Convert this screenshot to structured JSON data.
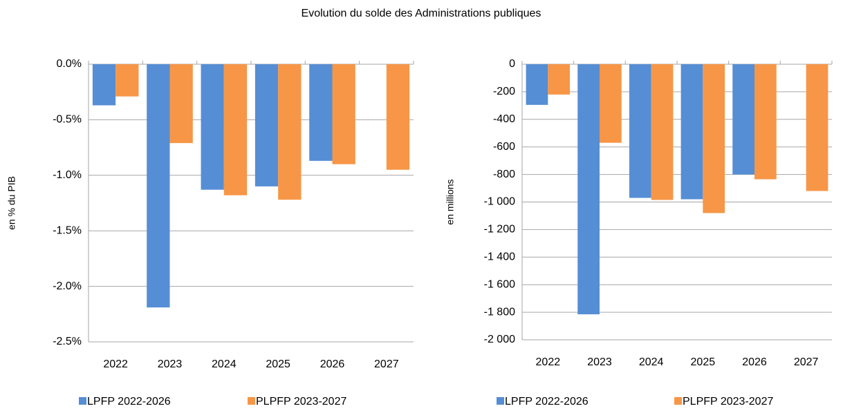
{
  "title": "Evolution du solde des Administrations publiques",
  "chart_data": [
    {
      "type": "bar",
      "y_label": "en % du PIB",
      "categories": [
        "2022",
        "2023",
        "2024",
        "2025",
        "2026",
        "2027"
      ],
      "series": [
        {
          "name": "LPFP 2022-2026",
          "color": "#558ed5",
          "values": [
            -0.37,
            -2.19,
            -1.13,
            -1.1,
            -0.87,
            null
          ]
        },
        {
          "name": "PLPFP 2023-2027",
          "color": "#f79646",
          "values": [
            -0.29,
            -0.71,
            -1.18,
            -1.22,
            -0.9,
            -0.95
          ]
        }
      ],
      "ylim": [
        -2.5,
        0
      ],
      "yticks": [
        {
          "value": 0,
          "label": "0.0%"
        },
        {
          "value": -0.5,
          "label": "-0.5%"
        },
        {
          "value": -1,
          "label": "-1.0%"
        },
        {
          "value": -1.5,
          "label": "-1.5%"
        },
        {
          "value": -2,
          "label": "-2.0%"
        },
        {
          "value": -2.5,
          "label": "-2.5%"
        }
      ],
      "grid": true,
      "legend": "bottom"
    },
    {
      "type": "bar",
      "y_label": "en millions",
      "categories": [
        "2022",
        "2023",
        "2024",
        "2025",
        "2026",
        "2027"
      ],
      "series": [
        {
          "name": "LPFP 2022-2026",
          "color": "#558ed5",
          "values": [
            -295,
            -1815,
            -970,
            -980,
            -800,
            null
          ]
        },
        {
          "name": "PLPFP 2023-2027",
          "color": "#f79646",
          "values": [
            -220,
            -570,
            -985,
            -1080,
            -835,
            -920
          ]
        }
      ],
      "ylim": [
        -2000,
        0
      ],
      "yticks": [
        0,
        -200,
        -400,
        -600,
        -800,
        {
          "value": -1000,
          "label": "-1 000"
        },
        {
          "value": -1200,
          "label": "-1 200"
        },
        {
          "value": -1400,
          "label": "-1 400"
        },
        {
          "value": -1600,
          "label": "-1 600"
        },
        {
          "value": -1800,
          "label": "-1 800"
        },
        {
          "value": -2000,
          "label": "-2 000"
        }
      ],
      "grid": true,
      "legend": "bottom"
    }
  ]
}
